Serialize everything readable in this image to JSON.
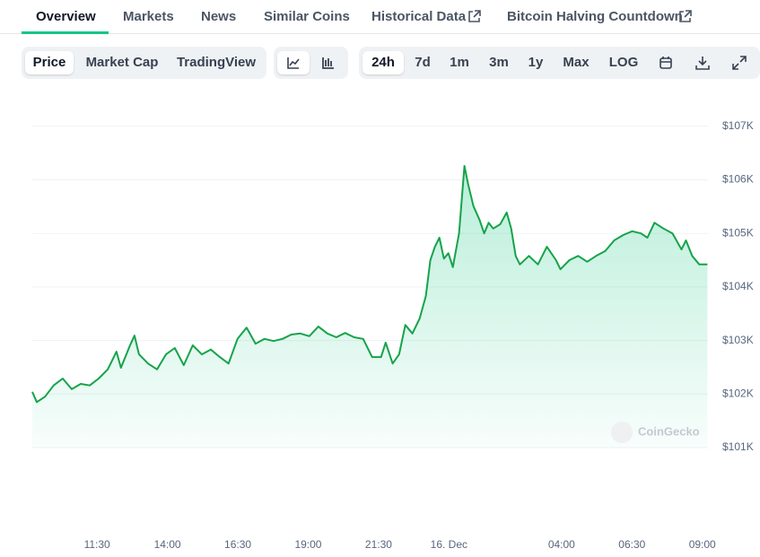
{
  "tabs": [
    "Overview",
    "Markets",
    "News",
    "Similar Coins",
    "Historical Data",
    "Bitcoin Halving Countdown"
  ],
  "metric_buttons": [
    "Price",
    "Market Cap",
    "TradingView"
  ],
  "range_buttons": [
    "24h",
    "7d",
    "1m",
    "3m",
    "1y",
    "Max",
    "LOG"
  ],
  "watermark": "CoinGecko",
  "chart_data": {
    "type": "line",
    "color": "#16a34a",
    "grid": true,
    "x": [
      9.2,
      9.36,
      9.65,
      9.96,
      10.28,
      10.6,
      10.92,
      11.24,
      11.56,
      11.88,
      12.19,
      12.35,
      12.67,
      12.83,
      12.99,
      13.31,
      13.63,
      13.95,
      14.26,
      14.58,
      14.9,
      15.22,
      15.54,
      15.86,
      16.17,
      16.49,
      16.81,
      17.13,
      17.45,
      17.77,
      18.09,
      18.4,
      18.72,
      19.04,
      19.36,
      19.68,
      20.0,
      20.31,
      20.63,
      20.95,
      21.27,
      21.59,
      21.75,
      22.0,
      22.23,
      22.45,
      22.7,
      22.96,
      23.18,
      23.34,
      23.5,
      23.66,
      23.82,
      23.98,
      24.14,
      24.36,
      24.55,
      24.68,
      24.87,
      25.09,
      25.25,
      25.41,
      25.57,
      25.82,
      26.05,
      26.21,
      26.37,
      26.52,
      26.84,
      27.16,
      27.48,
      27.8,
      27.96,
      28.28,
      28.59,
      28.91,
      29.23,
      29.55,
      29.87,
      30.19,
      30.51,
      30.82,
      31.05,
      31.3,
      31.62,
      31.94,
      32.26,
      32.42,
      32.64,
      32.89,
      33.18
    ],
    "values": [
      102040,
      101850,
      101950,
      102160,
      102290,
      102090,
      102190,
      102160,
      102290,
      102460,
      102790,
      102490,
      102910,
      103090,
      102740,
      102570,
      102460,
      102740,
      102860,
      102540,
      102910,
      102740,
      102830,
      102690,
      102570,
      103030,
      103240,
      102940,
      103030,
      102990,
      103030,
      103110,
      103130,
      103080,
      103260,
      103130,
      103060,
      103140,
      103060,
      103030,
      102690,
      102690,
      102960,
      102570,
      102740,
      103290,
      103130,
      103410,
      103830,
      104500,
      104750,
      104920,
      104530,
      104630,
      104370,
      105000,
      106260,
      105920,
      105510,
      105250,
      105000,
      105200,
      105090,
      105170,
      105390,
      105090,
      104580,
      104420,
      104580,
      104420,
      104750,
      104500,
      104330,
      104500,
      104580,
      104470,
      104580,
      104670,
      104870,
      104970,
      105040,
      105000,
      104920,
      105200,
      105090,
      105000,
      104700,
      104870,
      104580,
      104420,
      104420
    ],
    "xlim": [
      9.2,
      33.2
    ],
    "xticks": [
      {
        "value": 11.5,
        "label": "11:30"
      },
      {
        "value": 14,
        "label": "14:00"
      },
      {
        "value": 16.5,
        "label": "16:30"
      },
      {
        "value": 19,
        "label": "19:00"
      },
      {
        "value": 21.5,
        "label": "21:30"
      },
      {
        "value": 24,
        "label": "16. Dec"
      },
      {
        "value": 28,
        "label": "04:00"
      },
      {
        "value": 30.5,
        "label": "06:30"
      },
      {
        "value": 33,
        "label": "09:00"
      }
    ],
    "ylim": [
      101000,
      107700
    ],
    "yticks": [
      {
        "value": 101000,
        "label": "$101K"
      },
      {
        "value": 102000,
        "label": "$102K"
      },
      {
        "value": 103000,
        "label": "$103K"
      },
      {
        "value": 104000,
        "label": "$104K"
      },
      {
        "value": 105000,
        "label": "$105K"
      },
      {
        "value": 106000,
        "label": "$106K"
      },
      {
        "value": 107000,
        "label": "$107K"
      }
    ]
  }
}
